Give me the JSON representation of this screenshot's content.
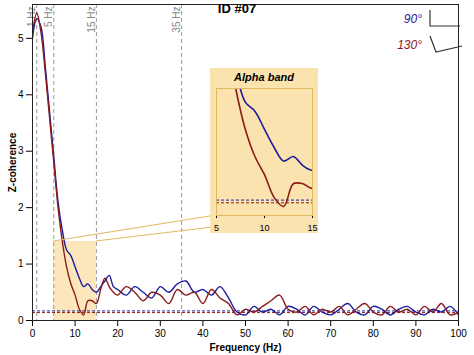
{
  "chart_data": {
    "type": "line",
    "title": "ID #07",
    "x_label": "Frequency (Hz)",
    "y_label": "Z-coherence",
    "x": [
      0,
      1,
      2,
      3,
      4,
      5,
      6,
      7,
      8,
      9,
      10,
      11,
      12,
      13,
      14,
      15,
      16,
      17,
      18,
      19,
      20,
      22,
      24,
      26,
      28,
      30,
      32,
      34,
      36,
      38,
      40,
      42,
      44,
      46,
      48,
      50,
      52,
      54,
      56,
      58,
      60,
      62,
      64,
      66,
      68,
      70,
      72,
      74,
      76,
      78,
      80,
      82,
      84,
      86,
      88,
      90,
      92,
      94,
      96,
      98,
      100
    ],
    "series": [
      {
        "name": "90°",
        "color": "#1c1c9c",
        "line_style": "solid",
        "limit": 0.17,
        "values": [
          5.0,
          5.35,
          5.2,
          4.5,
          3.7,
          2.9,
          2.1,
          1.6,
          1.25,
          1.15,
          0.95,
          0.75,
          0.6,
          0.65,
          0.55,
          0.5,
          0.6,
          0.7,
          0.8,
          0.6,
          0.55,
          0.45,
          0.6,
          0.5,
          0.4,
          0.6,
          0.5,
          0.65,
          0.7,
          0.5,
          0.55,
          0.45,
          0.6,
          0.4,
          0.15,
          0.1,
          0.25,
          0.15,
          0.2,
          0.1,
          0.25,
          0.2,
          0.1,
          0.25,
          0.15,
          0.1,
          0.2,
          0.3,
          0.15,
          0.1,
          0.25,
          0.2,
          0.1,
          0.2,
          0.25,
          0.15,
          0.1,
          0.2,
          0.15,
          0.25,
          0.1
        ]
      },
      {
        "name": "130°",
        "color": "#8b1a1a",
        "line_style": "solid",
        "limit": 0.14,
        "values": [
          5.1,
          5.45,
          5.1,
          4.4,
          3.6,
          2.8,
          2.0,
          1.4,
          0.95,
          0.65,
          0.45,
          0.2,
          0.1,
          0.35,
          0.35,
          0.3,
          0.55,
          0.75,
          0.6,
          0.5,
          0.45,
          0.6,
          0.5,
          0.35,
          0.5,
          0.45,
          0.3,
          0.55,
          0.45,
          0.5,
          0.3,
          0.55,
          0.4,
          0.3,
          0.1,
          0.2,
          0.15,
          0.25,
          0.35,
          0.45,
          0.2,
          0.15,
          0.25,
          0.1,
          0.2,
          0.15,
          0.25,
          0.1,
          0.2,
          0.3,
          0.15,
          0.1,
          0.25,
          0.15,
          0.2,
          0.1,
          0.25,
          0.15,
          0.3,
          0.1,
          0.15
        ]
      }
    ],
    "xlim": [
      0,
      100
    ],
    "xticks": [
      0,
      10,
      20,
      30,
      40,
      50,
      60,
      70,
      80,
      90,
      100
    ],
    "ylim": [
      0,
      5.6
    ],
    "yticks": [
      0,
      1,
      2,
      3,
      4,
      5
    ],
    "legend": "top-right",
    "reference_lines": [
      {
        "x": 1,
        "label": "1 Hz"
      },
      {
        "x": 5,
        "label": "5 Hz"
      },
      {
        "x": 15,
        "label": "15 Hz"
      },
      {
        "x": 35,
        "label": "35 Hz"
      }
    ],
    "highlight": {
      "xlim": [
        5,
        15
      ],
      "ylim": [
        0,
        1.4
      ]
    },
    "inset": {
      "title": "Alpha band",
      "xlim": [
        5,
        15
      ],
      "xticks": [
        5,
        10,
        15
      ],
      "ylim": [
        0,
        1.4
      ],
      "tick_labels": "x"
    }
  }
}
